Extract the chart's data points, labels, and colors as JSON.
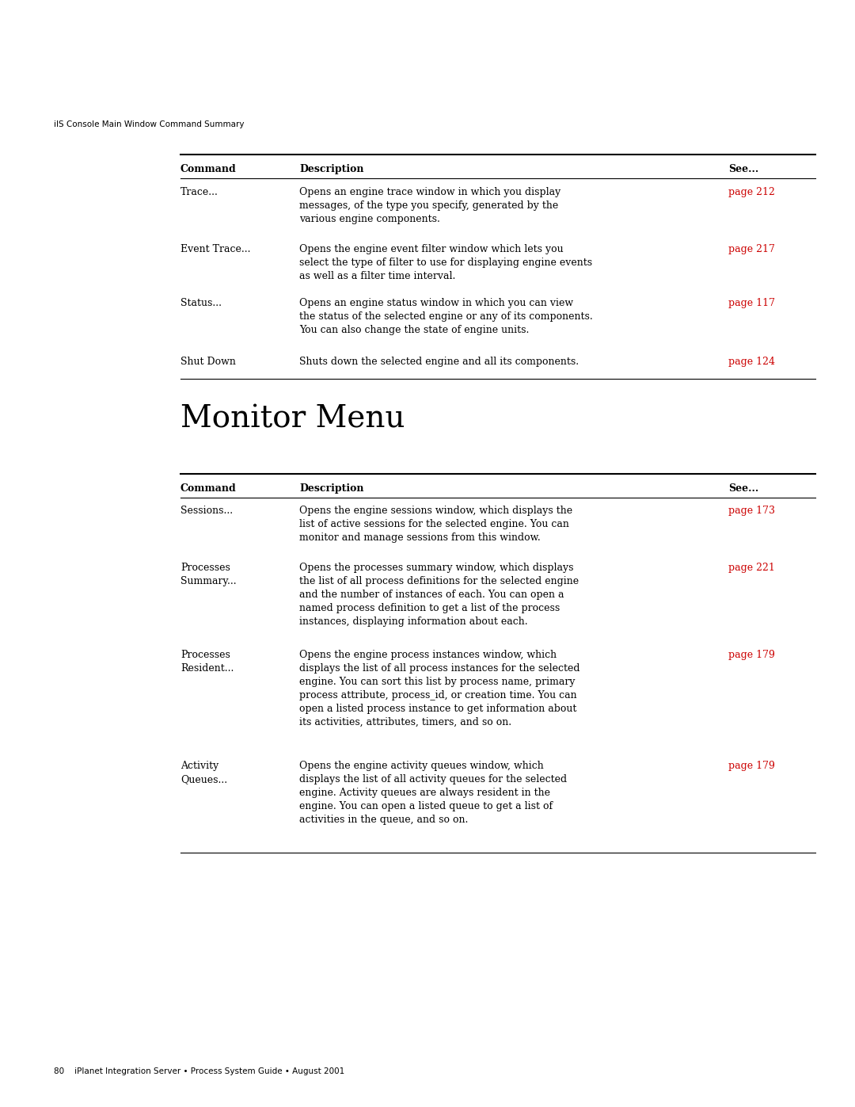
{
  "background_color": "#ffffff",
  "page_width": 10.8,
  "page_height": 13.97,
  "header_text": "iIS Console Main Window Command Summary",
  "header_fontsize": 7.5,
  "footer_text": "80    iPlanet Integration Server • Process System Guide • August 2001",
  "footer_fontsize": 7.5,
  "table1": {
    "headers": [
      "Command",
      "Description",
      "See..."
    ],
    "rows": [
      {
        "cmd": "Trace...",
        "desc": "Opens an engine trace window in which you display\nmessages, of the type you specify, generated by the\nvarious engine components.",
        "see": "page 212"
      },
      {
        "cmd": "Event Trace...",
        "desc": "Opens the engine event filter window which lets you\nselect the type of filter to use for displaying engine events\nas well as a filter time interval.",
        "see": "page 217"
      },
      {
        "cmd": "Status...",
        "desc": "Opens an engine status window in which you can view\nthe status of the selected engine or any of its components.\nYou can also change the state of engine units.",
        "see": "page 117"
      },
      {
        "cmd": "Shut Down",
        "desc": "Shuts down the selected engine and all its components.",
        "see": "page 124"
      }
    ]
  },
  "section2_title": "Monitor Menu",
  "section2_title_fontsize": 28,
  "table2": {
    "headers": [
      "Command",
      "Description",
      "See..."
    ],
    "rows": [
      {
        "cmd": "Sessions...",
        "desc": "Opens the engine sessions window, which displays the\nlist of active sessions for the selected engine. You can\nmonitor and manage sessions from this window.",
        "see": "page 173"
      },
      {
        "cmd": "Processes\nSummary...",
        "desc": "Opens the processes summary window, which displays\nthe list of all process definitions for the selected engine\nand the number of instances of each. You can open a\nnamed process definition to get a list of the process\ninstances, displaying information about each.",
        "see": "page 221"
      },
      {
        "cmd": "Processes\nResident...",
        "desc": "Opens the engine process instances window, which\ndisplays the list of all process instances for the selected\nengine. You can sort this list by process name, primary\nprocess attribute, process_id, or creation time. You can\nopen a listed process instance to get information about\nits activities, attributes, timers, and so on.",
        "see": "page 179"
      },
      {
        "cmd": "Activity\nQueues...",
        "desc": "Opens the engine activity queues window, which\ndisplays the list of all activity queues for the selected\nengine. Activity queues are always resident in the\nengine. You can open a listed queue to get a list of\nactivities in the queue, and so on.",
        "see": "page 179"
      }
    ]
  },
  "text_color": "#000000",
  "red_color": "#cc0000",
  "body_fontsize": 9.0,
  "header_col_fontsize": 9.0,
  "line_color": "#000000"
}
